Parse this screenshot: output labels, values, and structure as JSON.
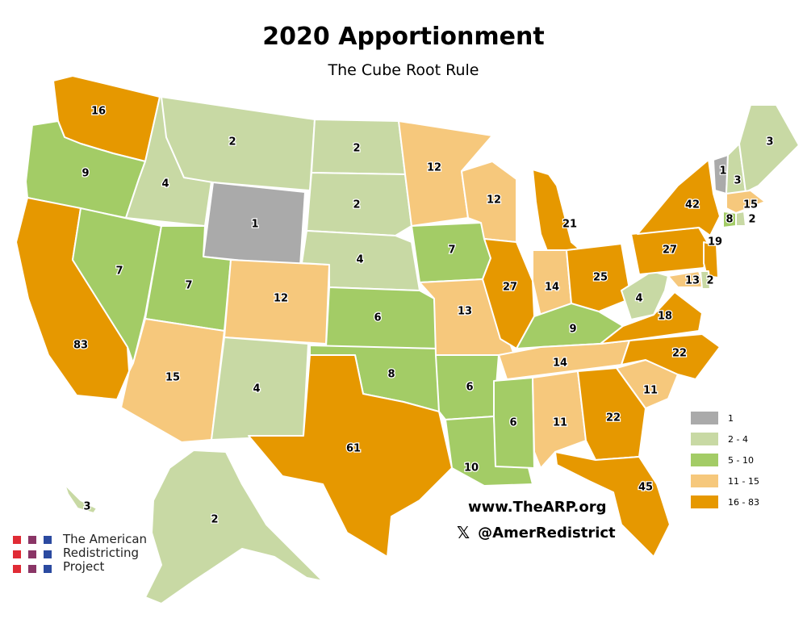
{
  "title": "2020 Apportionment",
  "subtitle": "The Cube Root Rule",
  "colors": {
    "1": "#aaaaaa",
    "2-4": "#c8d9a4",
    "5-10": "#a3cc66",
    "11-15": "#f6c87c",
    "16-83": "#e69800"
  },
  "legend": [
    {
      "label": "1",
      "key": "1"
    },
    {
      "label": "2 - 4",
      "key": "2-4"
    },
    {
      "label": "5 - 10",
      "key": "5-10"
    },
    {
      "label": "11 - 15",
      "key": "11-15"
    },
    {
      "label": "16 - 83",
      "key": "16-83"
    }
  ],
  "states": [
    {
      "name": "Washington",
      "seats": 16
    },
    {
      "name": "Oregon",
      "seats": 9
    },
    {
      "name": "California",
      "seats": 83
    },
    {
      "name": "Idaho",
      "seats": 4
    },
    {
      "name": "Nevada",
      "seats": 7
    },
    {
      "name": "Montana",
      "seats": 2
    },
    {
      "name": "Wyoming",
      "seats": 1
    },
    {
      "name": "Utah",
      "seats": 7
    },
    {
      "name": "Arizona",
      "seats": 15
    },
    {
      "name": "Colorado",
      "seats": 12
    },
    {
      "name": "New Mexico",
      "seats": 4
    },
    {
      "name": "North Dakota",
      "seats": 2
    },
    {
      "name": "South Dakota",
      "seats": 2
    },
    {
      "name": "Nebraska",
      "seats": 4
    },
    {
      "name": "Kansas",
      "seats": 6
    },
    {
      "name": "Oklahoma",
      "seats": 8
    },
    {
      "name": "Texas",
      "seats": 61
    },
    {
      "name": "Minnesota",
      "seats": 12
    },
    {
      "name": "Iowa",
      "seats": 7
    },
    {
      "name": "Missouri",
      "seats": 13
    },
    {
      "name": "Arkansas",
      "seats": 6
    },
    {
      "name": "Louisiana",
      "seats": 10
    },
    {
      "name": "Wisconsin",
      "seats": 12
    },
    {
      "name": "Illinois",
      "seats": 27
    },
    {
      "name": "Michigan",
      "seats": 21
    },
    {
      "name": "Indiana",
      "seats": 14
    },
    {
      "name": "Ohio",
      "seats": 25
    },
    {
      "name": "Kentucky",
      "seats": 9
    },
    {
      "name": "Tennessee",
      "seats": 14
    },
    {
      "name": "Mississippi",
      "seats": 6
    },
    {
      "name": "Alabama",
      "seats": 11
    },
    {
      "name": "Georgia",
      "seats": 22
    },
    {
      "name": "Florida",
      "seats": 45
    },
    {
      "name": "South Carolina",
      "seats": 11
    },
    {
      "name": "North Carolina",
      "seats": 22
    },
    {
      "name": "Virginia",
      "seats": 18
    },
    {
      "name": "West Virginia",
      "seats": 4
    },
    {
      "name": "Pennsylvania",
      "seats": 27
    },
    {
      "name": "New York",
      "seats": 42
    },
    {
      "name": "Vermont",
      "seats": 1
    },
    {
      "name": "New Hampshire",
      "seats": 3
    },
    {
      "name": "Maine",
      "seats": 3
    },
    {
      "name": "Massachusetts",
      "seats": 15
    },
    {
      "name": "Connecticut",
      "seats": 8
    },
    {
      "name": "Rhode Island",
      "seats": 2
    },
    {
      "name": "New Jersey",
      "seats": 19
    },
    {
      "name": "Maryland",
      "seats": 13
    },
    {
      "name": "Delaware",
      "seats": 2
    },
    {
      "name": "Alaska",
      "seats": 2
    },
    {
      "name": "Hawaii",
      "seats": 3
    }
  ],
  "website": "www.TheARP.org",
  "handle": "@AmerRedistrict",
  "x_icon": "x-logo-icon",
  "org": {
    "line1": "The American",
    "line2": "Redistricting",
    "line3": "Project",
    "dot_colors": [
      "#e02b35",
      "#8a3566",
      "#2b4aa0"
    ]
  }
}
